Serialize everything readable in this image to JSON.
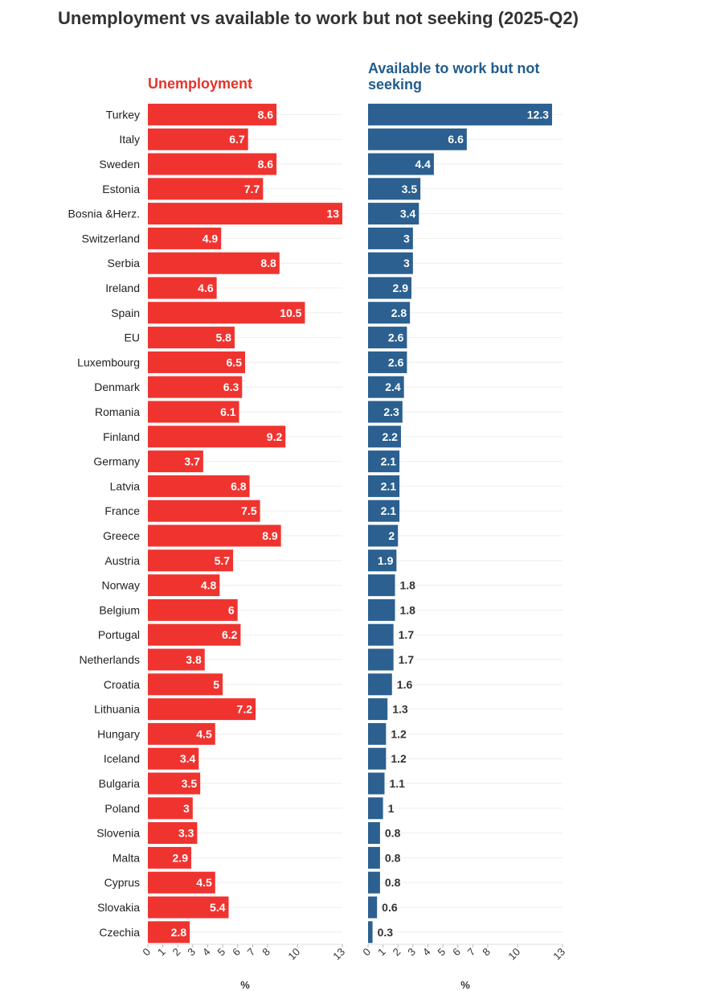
{
  "title": "Unemployment vs available to work but not seeking (2025-Q2)",
  "colors": {
    "unemployment": "#ef3430",
    "available": "#2b6090",
    "left_title": "#e63329",
    "right_title": "#225c8c"
  },
  "chart_data": [
    {
      "type": "bar",
      "orientation": "horizontal",
      "title": "Unemployment",
      "xlabel": "%",
      "xlim": [
        0,
        13
      ],
      "xticks": [
        0,
        1,
        2,
        3,
        4,
        5,
        6,
        7,
        8,
        10,
        13
      ],
      "categories": [
        "Turkey",
        "Italy",
        "Sweden",
        "Estonia",
        "Bosnia &Herz.",
        "Switzerland",
        "Serbia",
        "Ireland",
        "Spain",
        "EU",
        "Luxembourg",
        "Denmark",
        "Romania",
        "Finland",
        "Germany",
        "Latvia",
        "France",
        "Greece",
        "Austria",
        "Norway",
        "Belgium",
        "Portugal",
        "Netherlands",
        "Croatia",
        "Lithuania",
        "Hungary",
        "Iceland",
        "Bulgaria",
        "Poland",
        "Slovenia",
        "Malta",
        "Cyprus",
        "Slovakia",
        "Czechia"
      ],
      "values": [
        8.6,
        6.7,
        8.6,
        7.7,
        13,
        4.9,
        8.8,
        4.6,
        10.5,
        5.8,
        6.5,
        6.3,
        6.1,
        9.2,
        3.7,
        6.8,
        7.5,
        8.9,
        5.7,
        4.8,
        6,
        6.2,
        3.8,
        5,
        7.2,
        4.5,
        3.4,
        3.5,
        3,
        3.3,
        2.9,
        4.5,
        5.4,
        2.8
      ]
    },
    {
      "type": "bar",
      "orientation": "horizontal",
      "title": "Available to work but not seeking",
      "xlabel": "%",
      "xlim": [
        0,
        13
      ],
      "xticks": [
        0,
        1,
        2,
        3,
        4,
        5,
        6,
        7,
        8,
        10,
        13
      ],
      "categories": [
        "Turkey",
        "Italy",
        "Sweden",
        "Estonia",
        "Bosnia &Herz.",
        "Switzerland",
        "Serbia",
        "Ireland",
        "Spain",
        "EU",
        "Luxembourg",
        "Denmark",
        "Romania",
        "Finland",
        "Germany",
        "Latvia",
        "France",
        "Greece",
        "Austria",
        "Norway",
        "Belgium",
        "Portugal",
        "Netherlands",
        "Croatia",
        "Lithuania",
        "Hungary",
        "Iceland",
        "Bulgaria",
        "Poland",
        "Slovenia",
        "Malta",
        "Cyprus",
        "Slovakia",
        "Czechia"
      ],
      "values": [
        12.3,
        6.6,
        4.4,
        3.5,
        3.4,
        3,
        3,
        2.9,
        2.8,
        2.6,
        2.6,
        2.4,
        2.3,
        2.2,
        2.1,
        2.1,
        2.1,
        2,
        1.9,
        1.8,
        1.8,
        1.7,
        1.7,
        1.6,
        1.3,
        1.2,
        1.2,
        1.1,
        1,
        0.8,
        0.8,
        0.8,
        0.6,
        0.3
      ]
    }
  ]
}
